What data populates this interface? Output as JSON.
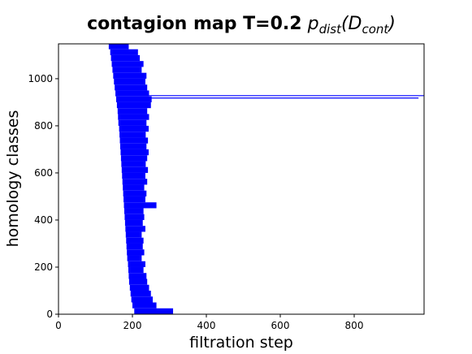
{
  "chart_data": {
    "type": "barcode",
    "title": "contagion map T=0.2",
    "title_formula": [
      "p",
      "dist",
      "(",
      "D",
      "cont",
      ")"
    ],
    "xlabel": "filtration step",
    "ylabel": "homology classes",
    "color": "#0000ff",
    "xlim": [
      0,
      989
    ],
    "ylim": [
      0,
      1148
    ],
    "xticks": [
      0,
      200,
      400,
      600,
      800
    ],
    "yticks": [
      0,
      200,
      400,
      600,
      800,
      1000
    ],
    "y": [
      0,
      25,
      50,
      75,
      100,
      125,
      150,
      175,
      200,
      225,
      250,
      275,
      300,
      325,
      350,
      375,
      400,
      425,
      450,
      475,
      500,
      525,
      550,
      575,
      600,
      625,
      650,
      675,
      700,
      725,
      750,
      775,
      800,
      825,
      850,
      875,
      900,
      925,
      950,
      975,
      1000,
      1025,
      1050,
      1075,
      1100,
      1125
    ],
    "births": [
      205,
      200,
      197,
      195,
      193,
      191,
      190,
      189,
      188,
      186,
      185,
      184,
      183,
      182,
      181,
      180,
      179,
      178,
      177,
      176,
      175,
      174,
      173,
      172,
      171,
      170,
      169,
      168,
      167,
      166,
      165,
      164,
      162,
      161,
      160,
      158,
      156,
      154,
      152,
      150,
      148,
      146,
      144,
      142,
      140,
      136
    ],
    "deaths": [
      310,
      265,
      255,
      250,
      245,
      240,
      238,
      230,
      235,
      225,
      232,
      228,
      230,
      225,
      235,
      228,
      232,
      230,
      265,
      235,
      238,
      232,
      240,
      235,
      242,
      236,
      240,
      244,
      238,
      242,
      236,
      244,
      238,
      245,
      240,
      250,
      252,
      245,
      240,
      235,
      238,
      225,
      230,
      220,
      215,
      190
    ],
    "long_bars": {
      "y": [
        918,
        928
      ],
      "births": [
        157,
        155
      ],
      "deaths": [
        974,
        989
      ]
    }
  }
}
